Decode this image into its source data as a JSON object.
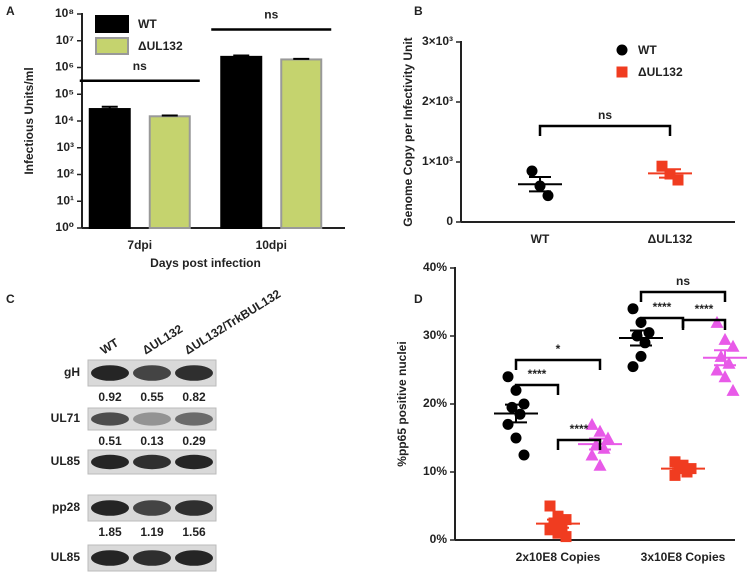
{
  "chart_data": [
    {
      "type": "bar",
      "panel": "A",
      "ylabel": "Infectious Units/ml",
      "xlabel": "Days post infection",
      "categories": [
        "7dpi",
        "10dpi"
      ],
      "series": [
        {
          "name": "WT",
          "color": "#000000",
          "values": [
            28000,
            2500000
          ],
          "errors": [
            6000,
            300000
          ]
        },
        {
          "name": "ΔUL132",
          "color": "#c5d36e",
          "values": [
            15000,
            2000000
          ],
          "errors": [
            1000,
            100000
          ]
        }
      ],
      "log_scale": true,
      "ylim": [
        1,
        100000000
      ],
      "yticks": [
        {
          "value": 1,
          "label": "10⁰"
        },
        {
          "value": 10,
          "label": "10¹"
        },
        {
          "value": 100,
          "label": "10²"
        },
        {
          "value": 1000,
          "label": "10³"
        },
        {
          "value": 10000,
          "label": "10⁴"
        },
        {
          "value": 100000,
          "label": "10⁵"
        },
        {
          "value": 1000000,
          "label": "10⁶"
        },
        {
          "value": 10000000,
          "label": "10⁷"
        },
        {
          "value": 100000000,
          "label": "10⁸"
        }
      ],
      "annotations": [
        "ns",
        "ns"
      ],
      "legend": "upper left"
    },
    {
      "type": "scatter",
      "panel": "B",
      "ylabel": "Genome Copy per Infectivity Unit",
      "categories": [
        "WT",
        "ΔUL132"
      ],
      "series": [
        {
          "name": "WT",
          "color": "#000000",
          "marker": "circle",
          "values": [
            [
              850,
              600,
              440
            ],
            null
          ],
          "mean": [
            630,
            null
          ],
          "sem": [
            120,
            null
          ]
        },
        {
          "name": "ΔUL132",
          "color": "#f03c20",
          "marker": "square",
          "values": [
            null,
            [
              930,
              800,
              700
            ]
          ],
          "mean": [
            null,
            810
          ],
          "sem": [
            null,
            70
          ]
        }
      ],
      "ylim": [
        0,
        3000
      ],
      "yticks": [
        0,
        {
          "value": 1000,
          "label": "1×10³"
        },
        {
          "value": 2000,
          "label": "2×10³"
        },
        {
          "value": 3000,
          "label": "3×10³"
        }
      ],
      "annotations": [
        "ns"
      ],
      "legend": "upper right"
    },
    {
      "type": "blot",
      "panel": "C",
      "lanes": [
        "WT",
        "ΔUL132",
        "ΔUL132/TrkBUL132"
      ],
      "rows": [
        {
          "name": "gH",
          "values": [
            0.92,
            0.55,
            0.82
          ]
        },
        {
          "name": "UL71",
          "values": [
            0.51,
            0.13,
            0.29
          ]
        },
        {
          "name": "UL85"
        },
        {
          "name": "pp28",
          "values": [
            1.85,
            1.19,
            1.56
          ]
        },
        {
          "name": "UL85"
        }
      ]
    },
    {
      "type": "scatter",
      "panel": "D",
      "ylabel": "%pp65 positive nuclei",
      "categories": [
        "2x10E8 Copies",
        "3x10E8 Copies"
      ],
      "series": [
        {
          "color": "#000000",
          "marker": "circle",
          "values": [
            [
              24,
              22,
              20,
              19.5,
              18.5,
              17,
              15,
              12.5
            ],
            [
              34,
              32,
              30.5,
              30,
              29,
              25.5,
              27
            ]
          ],
          "mean": [
            18.6,
            29.7
          ],
          "sem": [
            1.3,
            1.1
          ]
        },
        {
          "color": "#f03c20",
          "marker": "square",
          "values": [
            [
              5,
              3.5,
              3,
              2.5,
              2,
              1.5,
              1,
              0.5
            ],
            [
              11.5,
              11,
              10.5,
              10.5,
              10,
              9.5
            ]
          ],
          "mean": [
            2.4,
            10.5
          ],
          "sem": [
            0.6,
            0.3
          ]
        },
        {
          "color": "#e85ae8",
          "marker": "triangle",
          "values": [
            [
              17,
              16,
              15,
              14,
              13.5,
              12.5,
              11
            ],
            [
              32,
              29.5,
              28.5,
              27,
              26,
              25,
              24,
              22
            ]
          ],
          "mean": [
            14.1,
            26.8
          ],
          "sem": [
            0.8,
            1.1
          ]
        }
      ],
      "ylim": [
        0,
        40
      ],
      "yticks": [
        {
          "value": 0,
          "label": "0%"
        },
        {
          "value": 10,
          "label": "10%"
        },
        {
          "value": 20,
          "label": "20%"
        },
        {
          "value": 30,
          "label": "30%"
        },
        {
          "value": 40,
          "label": "40%"
        }
      ],
      "annotations": [
        "****",
        "****",
        "*",
        "****",
        "****",
        "ns"
      ]
    }
  ]
}
